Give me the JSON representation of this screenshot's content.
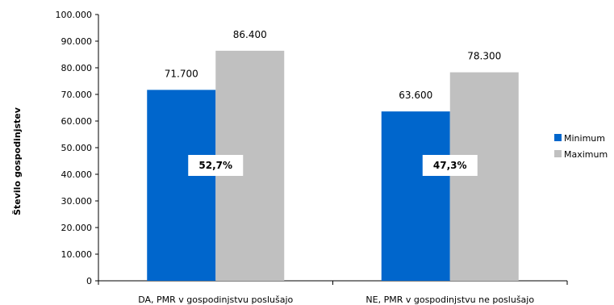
{
  "chart_data": {
    "type": "bar",
    "categories": [
      "DA, PMR v gospodinjstvu poslušajo",
      "NE, PMR v gospodinjstvu ne poslušajo"
    ],
    "series": [
      {
        "name": "Minimum",
        "values": [
          71700,
          63600
        ],
        "value_labels": [
          "71.700",
          "63.600"
        ],
        "color": "#0066cc"
      },
      {
        "name": "Maximum",
        "values": [
          86400,
          78300
        ],
        "value_labels": [
          "86.400",
          "78.300"
        ],
        "color": "#c0c0c0"
      }
    ],
    "share_labels": [
      "52,7%",
      "47,3%"
    ],
    "ylabel": "Število gospodinjstev",
    "ylim": [
      0,
      100000
    ],
    "ytick_values": [
      0,
      10000,
      20000,
      30000,
      40000,
      50000,
      60000,
      70000,
      80000,
      90000,
      100000
    ],
    "ytick_labels": [
      "0",
      "10.000",
      "20.000",
      "30.000",
      "40.000",
      "50.000",
      "60.000",
      "70.000",
      "80.000",
      "90.000",
      "100.000"
    ],
    "legend_position": "right",
    "grid": false
  }
}
